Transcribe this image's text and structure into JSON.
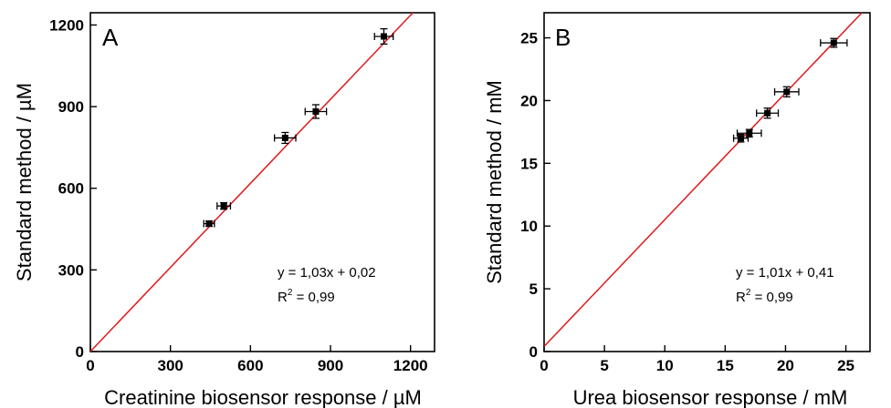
{
  "chart_data": [
    {
      "type": "scatter",
      "panel_label": "A",
      "xlabel": "Creatinine biosensor response / µM",
      "ylabel": "Standard method / µM",
      "xlim": [
        0,
        1290
      ],
      "ylim": [
        0,
        1245
      ],
      "xticks": [
        0,
        300,
        600,
        900,
        1200
      ],
      "yticks": [
        0,
        300,
        600,
        900,
        1200
      ],
      "grid": false,
      "points": [
        {
          "x": 445,
          "y": 470,
          "xerr": 20,
          "yerr": 10
        },
        {
          "x": 500,
          "y": 535,
          "xerr": 25,
          "yerr": 12
        },
        {
          "x": 730,
          "y": 785,
          "xerr": 40,
          "yerr": 20
        },
        {
          "x": 845,
          "y": 882,
          "xerr": 40,
          "yerr": 25
        },
        {
          "x": 1100,
          "y": 1158,
          "xerr": 35,
          "yerr": 28
        }
      ],
      "fit_line": {
        "slope": 1.03,
        "intercept": 0.02,
        "color": "#e0191b"
      },
      "equation": "y = 1,03x + 0,02",
      "r2_label": "R",
      "r2_sup": "2",
      "r2_value": " = 0,99"
    },
    {
      "type": "scatter",
      "panel_label": "B",
      "xlabel": "Urea biosensor response / mM",
      "ylabel": "Standard method / mM",
      "xlim": [
        0,
        27
      ],
      "ylim": [
        0,
        27
      ],
      "xticks": [
        0,
        5,
        10,
        15,
        20,
        25
      ],
      "yticks": [
        0,
        5,
        10,
        15,
        20,
        25
      ],
      "grid": false,
      "points": [
        {
          "x": 16.3,
          "y": 17.0,
          "xerr": 0.6,
          "yerr": 0.3
        },
        {
          "x": 17.0,
          "y": 17.4,
          "xerr": 1.0,
          "yerr": 0.3
        },
        {
          "x": 18.5,
          "y": 19.0,
          "xerr": 0.9,
          "yerr": 0.4
        },
        {
          "x": 20.1,
          "y": 20.7,
          "xerr": 1.0,
          "yerr": 0.4
        },
        {
          "x": 24.0,
          "y": 24.6,
          "xerr": 1.1,
          "yerr": 0.35
        }
      ],
      "fit_line": {
        "slope": 1.01,
        "intercept": 0.41,
        "color": "#e0191b"
      },
      "equation": "y = 1,01x + 0,41",
      "r2_label": "R",
      "r2_sup": "2",
      "r2_value": " = 0,99"
    }
  ]
}
